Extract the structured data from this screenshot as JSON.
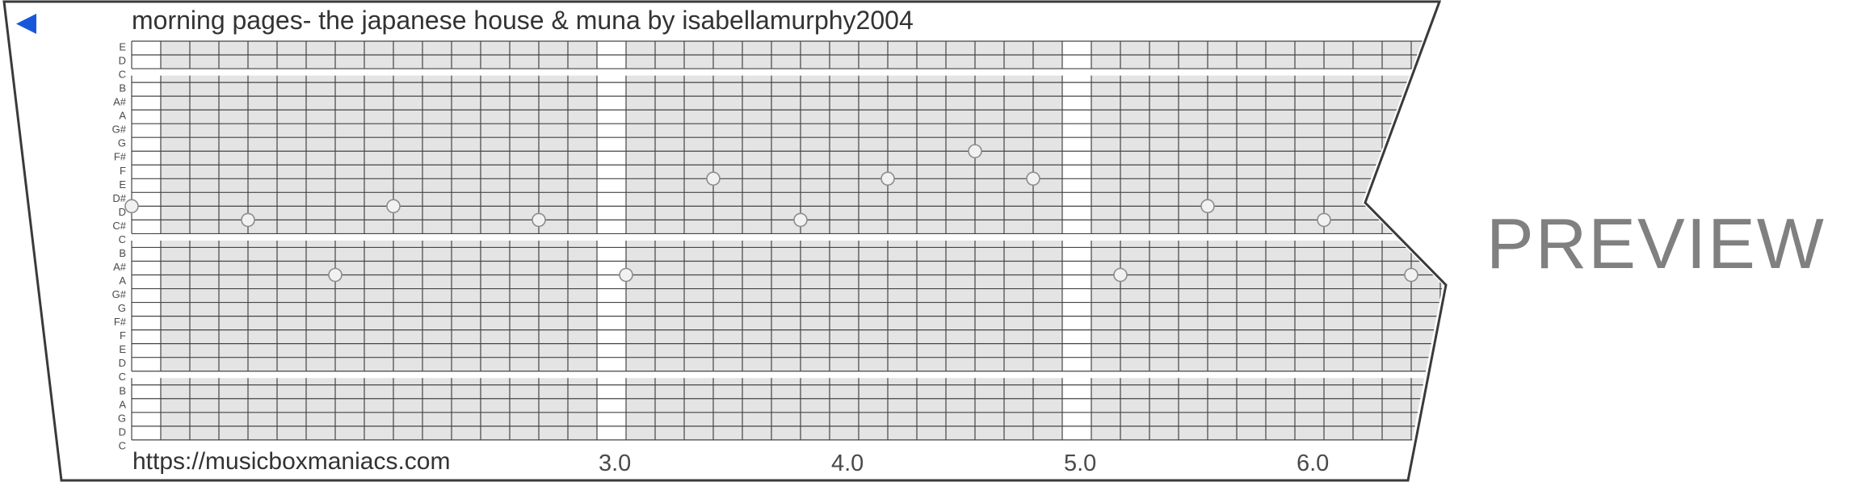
{
  "title": "morning pages- the japanese house & muna by isabellamurphy2004",
  "site_url": "https://musicboxmaniacs.com",
  "watermark": "PREVIEW",
  "play_button": {
    "icon": "left-triangle",
    "color": "#1658D9"
  },
  "colors": {
    "background": "#ffffff",
    "strip_border": "#3a3a3a",
    "grid_line": "#454545",
    "cell_shading": "#e4e4e4",
    "row_label": "#4a4a4a",
    "title": "#333333",
    "url": "#333333",
    "beat_label": "#4a4a4a",
    "watermark": "#808080",
    "dot_fill": "#f1f1f1",
    "dot_stroke": "#8c8c8c"
  },
  "strip": {
    "row_labels": [
      "E",
      "D",
      "C",
      "B",
      "A#",
      "A",
      "G#",
      "G",
      "F#",
      "F",
      "E",
      "D#",
      "D",
      "C#",
      "C",
      "B",
      "A#",
      "A",
      "G#",
      "G",
      "F#",
      "F",
      "E",
      "D",
      "C",
      "B",
      "A",
      "G",
      "D",
      "C"
    ],
    "octave_break_after_rows": [
      3,
      15,
      25
    ],
    "white_column_cells": [
      0,
      16,
      32
    ],
    "beat_labels": [
      {
        "label": "3.0",
        "col": 16
      },
      {
        "label": "4.0",
        "col": 24
      },
      {
        "label": "5.0",
        "col": 32
      },
      {
        "label": "6.0",
        "col": 40
      }
    ],
    "notes": [
      {
        "col": 0,
        "row": 13,
        "note": "D"
      },
      {
        "col": 4,
        "row": 14,
        "note": "C#"
      },
      {
        "col": 7,
        "row": 18,
        "note": "A"
      },
      {
        "col": 9,
        "row": 13,
        "note": "D"
      },
      {
        "col": 14,
        "row": 14,
        "note": "C#"
      },
      {
        "col": 17,
        "row": 18,
        "note": "A"
      },
      {
        "col": 20,
        "row": 11,
        "note": "E"
      },
      {
        "col": 23,
        "row": 14,
        "note": "C#"
      },
      {
        "col": 26,
        "row": 11,
        "note": "E"
      },
      {
        "col": 29,
        "row": 9,
        "note": "F#"
      },
      {
        "col": 31,
        "row": 11,
        "note": "E"
      },
      {
        "col": 34,
        "row": 18,
        "note": "A"
      },
      {
        "col": 37,
        "row": 13,
        "note": "D"
      },
      {
        "col": 41,
        "row": 14,
        "note": "C#"
      },
      {
        "col": 44,
        "row": 18,
        "note": "A"
      }
    ]
  }
}
